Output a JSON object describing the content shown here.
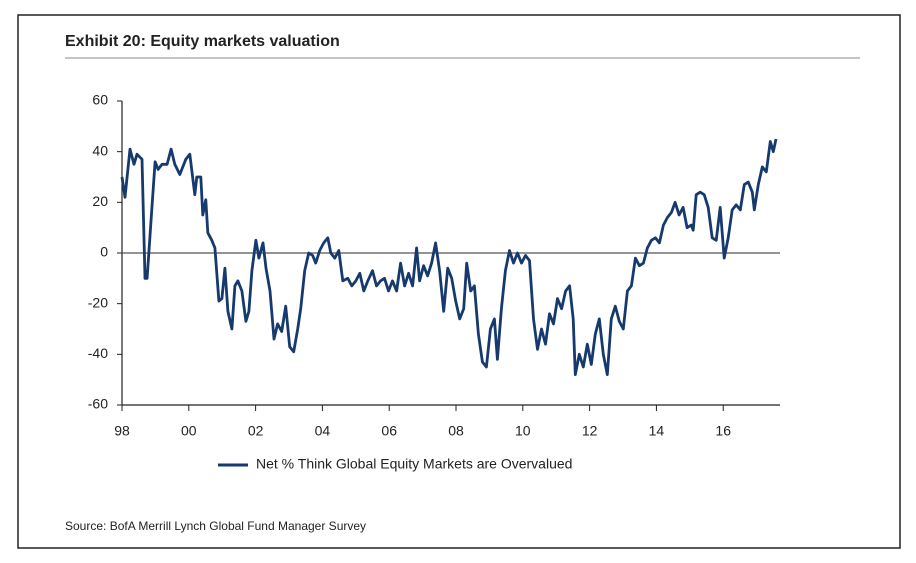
{
  "chart_data": {
    "type": "line",
    "title": "Exhibit 20: Equity markets valuation",
    "source": "Source: BofA Merrill Lynch Global Fund Manager Survey",
    "x": [
      1998.0,
      1998.09,
      1998.24,
      1998.36,
      1998.45,
      1998.6,
      1998.69,
      1998.75,
      1998.9,
      1998.99,
      1999.08,
      1999.2,
      1999.35,
      1999.47,
      1999.58,
      1999.73,
      1999.91,
      2000.03,
      2000.18,
      2000.24,
      2000.36,
      2000.42,
      2000.51,
      2000.57,
      2000.69,
      2000.78,
      2000.9,
      2000.99,
      2001.08,
      2001.17,
      2001.29,
      2001.38,
      2001.47,
      2001.59,
      2001.71,
      2001.8,
      2001.89,
      2002.01,
      2002.1,
      2002.22,
      2002.31,
      2002.43,
      2002.55,
      2002.66,
      2002.78,
      2002.9,
      2003.02,
      2003.14,
      2003.26,
      2003.35,
      2003.47,
      2003.59,
      2003.71,
      2003.8,
      2003.92,
      2004.04,
      2004.16,
      2004.25,
      2004.37,
      2004.49,
      2004.61,
      2004.76,
      2004.88,
      2005.0,
      2005.12,
      2005.24,
      2005.36,
      2005.5,
      2005.62,
      2005.74,
      2005.86,
      2005.98,
      2006.1,
      2006.22,
      2006.34,
      2006.46,
      2006.58,
      2006.7,
      2006.82,
      2006.91,
      2007.03,
      2007.15,
      2007.27,
      2007.39,
      2007.51,
      2007.63,
      2007.75,
      2007.87,
      2007.99,
      2008.11,
      2008.23,
      2008.32,
      2008.44,
      2008.55,
      2008.67,
      2008.79,
      2008.91,
      2009.03,
      2009.15,
      2009.24,
      2009.36,
      2009.48,
      2009.6,
      2009.72,
      2009.84,
      2009.96,
      2010.08,
      2010.2,
      2010.32,
      2010.44,
      2010.56,
      2010.68,
      2010.8,
      2010.92,
      2011.04,
      2011.16,
      2011.28,
      2011.4,
      2011.51,
      2011.57,
      2011.69,
      2011.81,
      2011.93,
      2012.05,
      2012.17,
      2012.29,
      2012.41,
      2012.53,
      2012.65,
      2012.77,
      2012.89,
      2013.01,
      2013.13,
      2013.25,
      2013.37,
      2013.49,
      2013.61,
      2013.73,
      2013.85,
      2013.97,
      2014.09,
      2014.21,
      2014.33,
      2014.45,
      2014.56,
      2014.68,
      2014.8,
      2014.92,
      2015.04,
      2015.1,
      2015.19,
      2015.31,
      2015.43,
      2015.55,
      2015.67,
      2015.79,
      2015.91,
      2016.03,
      2016.15,
      2016.27,
      2016.39,
      2016.51,
      2016.63,
      2016.75,
      2016.87,
      2016.93,
      2017.05,
      2017.17,
      2017.29,
      2017.41,
      2017.5,
      2017.58
    ],
    "series": [
      {
        "name": "Net % Think Global Equity Markets are Overvalued",
        "color": "#173a6e",
        "values": [
          30,
          22,
          41,
          35,
          39,
          37,
          -10,
          -10,
          19,
          36,
          33,
          35,
          35,
          41,
          35,
          31,
          37,
          39,
          23,
          30,
          30,
          15,
          21,
          8,
          5,
          2,
          -19,
          -18,
          -6,
          -23,
          -30,
          -13,
          -11,
          -15,
          -27,
          -23,
          -7,
          5,
          -2,
          4,
          -6,
          -15,
          -34,
          -28,
          -31,
          -21,
          -37,
          -39,
          -30,
          -22,
          -7,
          0,
          -1,
          -4,
          1,
          4,
          6,
          0,
          -2,
          1,
          -11,
          -10,
          -13,
          -11,
          -8,
          -15,
          -11,
          -7,
          -13,
          -11,
          -10,
          -15,
          -11,
          -15,
          -4,
          -13,
          -8,
          -13,
          2,
          -11,
          -5,
          -9,
          -4,
          4,
          -7,
          -23,
          -6,
          -10,
          -19,
          -26,
          -22,
          -4,
          -15,
          -13,
          -32,
          -43,
          -45,
          -30,
          -26,
          -42,
          -22,
          -7,
          1,
          -4,
          0,
          -4,
          -1,
          -3,
          -26,
          -38,
          -30,
          -36,
          -24,
          -28,
          -18,
          -22,
          -15,
          -13,
          -26,
          -48,
          -40,
          -45,
          -36,
          -44,
          -32,
          -26,
          -40,
          -48,
          -26,
          -21,
          -27,
          -30,
          -15,
          -13,
          -2,
          -5,
          -4,
          2,
          5,
          6,
          4,
          11,
          14,
          16,
          20,
          15,
          18,
          10,
          11,
          9,
          23,
          24,
          23,
          18,
          6,
          5,
          18,
          -2,
          6,
          17,
          19,
          17,
          27,
          28,
          24,
          17,
          27,
          34,
          32,
          44,
          40,
          45
        ]
      }
    ],
    "xlim": [
      1998,
      2017.7
    ],
    "xticks": [
      {
        "value": 1998,
        "label": "98"
      },
      {
        "value": 2000,
        "label": "00"
      },
      {
        "value": 2002,
        "label": "02"
      },
      {
        "value": 2004,
        "label": "04"
      },
      {
        "value": 2006,
        "label": "06"
      },
      {
        "value": 2008,
        "label": "08"
      },
      {
        "value": 2010,
        "label": "10"
      },
      {
        "value": 2012,
        "label": "12"
      },
      {
        "value": 2014,
        "label": "14"
      },
      {
        "value": 2016,
        "label": "16"
      }
    ],
    "ylim": [
      -60,
      60
    ],
    "yticks": [
      -60,
      -40,
      -20,
      0,
      20,
      40,
      60
    ],
    "zero_line": true,
    "legend": "bottom"
  }
}
